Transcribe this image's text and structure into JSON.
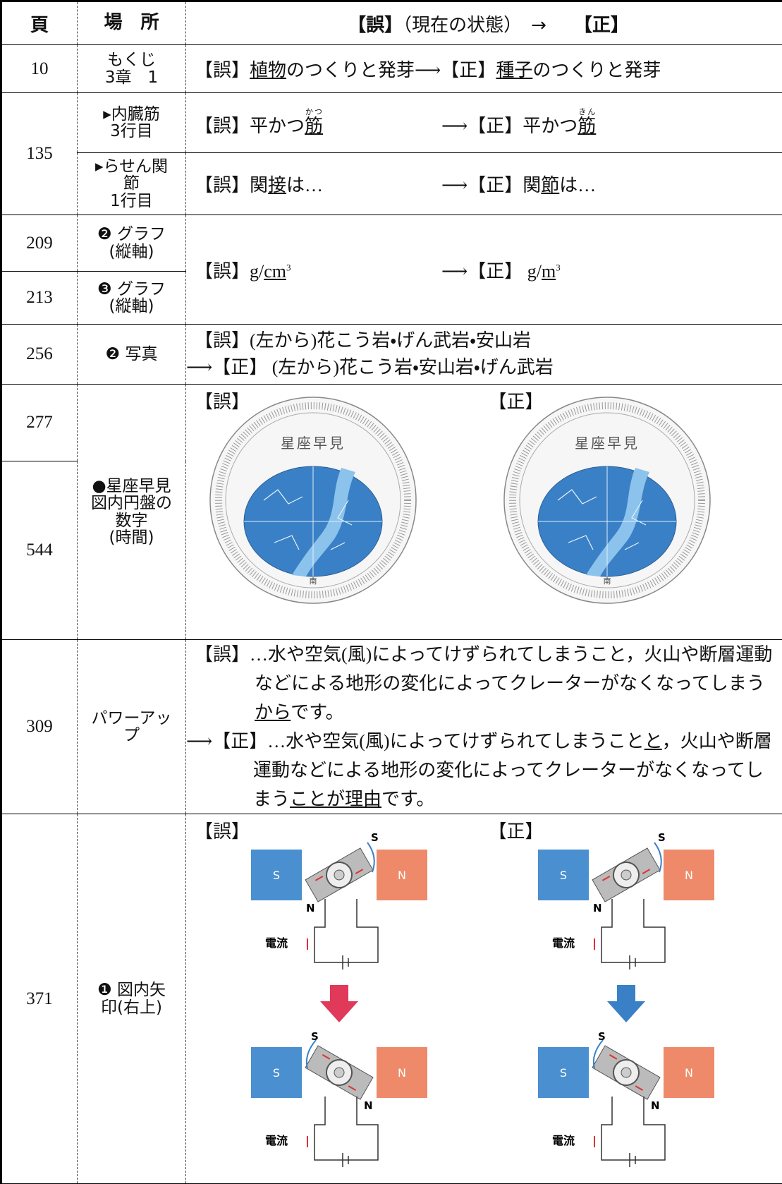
{
  "header": {
    "page": "頁",
    "place": "場　所",
    "content": [
      {
        "t": "【誤】",
        "b": true
      },
      {
        "t": "（現在の状態）　→　　"
      },
      {
        "t": "【正】",
        "b": true
      }
    ]
  },
  "rows": [
    {
      "page": "10",
      "place": [
        "もくじ",
        "3章　1"
      ],
      "line": [
        {
          "t": "【誤】"
        },
        {
          "t": "植物",
          "u": true
        },
        {
          "t": "のつくりと発芽⟶【正】"
        },
        {
          "t": "種子",
          "u": true
        },
        {
          "t": "のつくりと発芽"
        }
      ]
    },
    {
      "page": "135",
      "place": [
        "▸内臓筋",
        "3行目"
      ],
      "wrong": [
        {
          "t": "【誤】平かつ"
        },
        {
          "t": "筋",
          "u": true,
          "ruby": "かつ"
        }
      ],
      "right": [
        {
          "t": "⟶【正】平かつ"
        },
        {
          "t": "筋",
          "u": true,
          "ruby": "きん"
        }
      ]
    },
    {
      "place": [
        "▸らせん関",
        "節",
        "1行目"
      ],
      "wrong": [
        {
          "t": "【誤】関"
        },
        {
          "t": "接",
          "u": true
        },
        {
          "t": "は…"
        }
      ],
      "right": [
        {
          "t": "⟶【正】関"
        },
        {
          "t": "節",
          "u": true
        },
        {
          "t": "は…"
        }
      ]
    },
    {
      "page": "209",
      "place": [
        "❷ グラフ",
        "(縦軸)"
      ],
      "wrong": [
        {
          "t": "【誤】g/"
        },
        {
          "t": "cm",
          "u": true
        },
        {
          "t": "3",
          "sup": true
        }
      ],
      "right": [
        {
          "t": "⟶【正】 g/"
        },
        {
          "t": "m",
          "u": true
        },
        {
          "t": "3",
          "sup": true
        }
      ]
    },
    {
      "page": "213",
      "place": [
        "❸ グラフ",
        "(縦軸)"
      ]
    },
    {
      "page": "256",
      "place": [
        "❷ 写真"
      ],
      "lines": [
        [
          {
            "t": "【誤】(左から)花こう岩・げん武岩・安山岩"
          }
        ],
        [
          {
            "t": "⟶【正】 (左から)花こう岩・安山岩・げん武岩"
          }
        ]
      ]
    },
    {
      "page": "277",
      "place": [
        "●星座早見",
        "図内円盤の",
        "数字",
        "(時間)"
      ],
      "figure": {
        "wrong": "【誤】",
        "right": "【正】"
      }
    },
    {
      "page": "544"
    },
    {
      "page": "309",
      "place": [
        "パワーアッ",
        "プ"
      ],
      "paras": [
        [
          {
            "t": "【誤】…水や空気(風)によってけずられてしまうこと，火山や断層運動などによる地形の変化によってクレーターがなくなってしまう"
          },
          {
            "t": "から",
            "u": true
          },
          {
            "t": "です。"
          }
        ],
        [
          {
            "t": "⟶【正】…水や空気(風)によってけずられてしまうこと"
          },
          {
            "t": "と",
            "u": true
          },
          {
            "t": "，火山や断層運動などによる地形の変化によってクレーターがなくなってしまう"
          },
          {
            "t": "ことが理由",
            "u": true
          },
          {
            "t": "です。"
          }
        ]
      ]
    },
    {
      "page": "371",
      "place": [
        "❶ 図内矢",
        "印(右上)"
      ],
      "figure": {
        "wrong": "【誤】",
        "right": "【正】"
      }
    }
  ],
  "figures": {
    "star_title": "星座早見",
    "star_south": "南",
    "pole_s": "S",
    "pole_n": "N",
    "current": "電流"
  }
}
